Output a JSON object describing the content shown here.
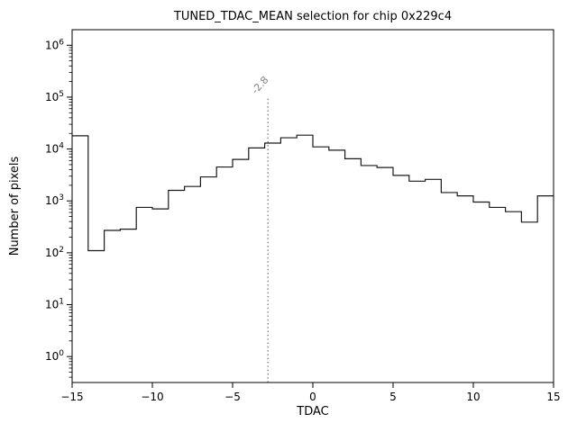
{
  "chart_data": {
    "type": "histogram",
    "title": "TUNED_TDAC_MEAN selection for chip 0x229c4",
    "xlabel": "TDAC",
    "ylabel": "Number of pixels",
    "xlim": [
      -15,
      15
    ],
    "yscale": "log",
    "ylim_log10": [
      -0.5,
      6.3
    ],
    "xticks": [
      -15,
      -10,
      -5,
      0,
      5,
      10,
      15
    ],
    "ytick_exponents": [
      0,
      1,
      2,
      3,
      4,
      5,
      6
    ],
    "bin_edges": [
      -15,
      -14,
      -13,
      -12,
      -11,
      -10,
      -9,
      -8,
      -7,
      -6,
      -5,
      -4,
      -3,
      -2,
      -1,
      0,
      1,
      2,
      3,
      4,
      5,
      6,
      7,
      8,
      9,
      10,
      11,
      12,
      13,
      14,
      15
    ],
    "counts": [
      18000,
      110,
      270,
      285,
      750,
      700,
      1600,
      1900,
      2900,
      4500,
      6300,
      10500,
      13000,
      16500,
      18500,
      11000,
      9500,
      6500,
      4800,
      4400,
      3100,
      2400,
      2600,
      1450,
      1250,
      950,
      750,
      620,
      390,
      1250
    ],
    "line_color": "#1a1a1a",
    "axis_color": "#000000",
    "background_color": "#ffffff",
    "vline": {
      "x": -2.8,
      "label": "-2.8",
      "color": "#808080"
    }
  }
}
